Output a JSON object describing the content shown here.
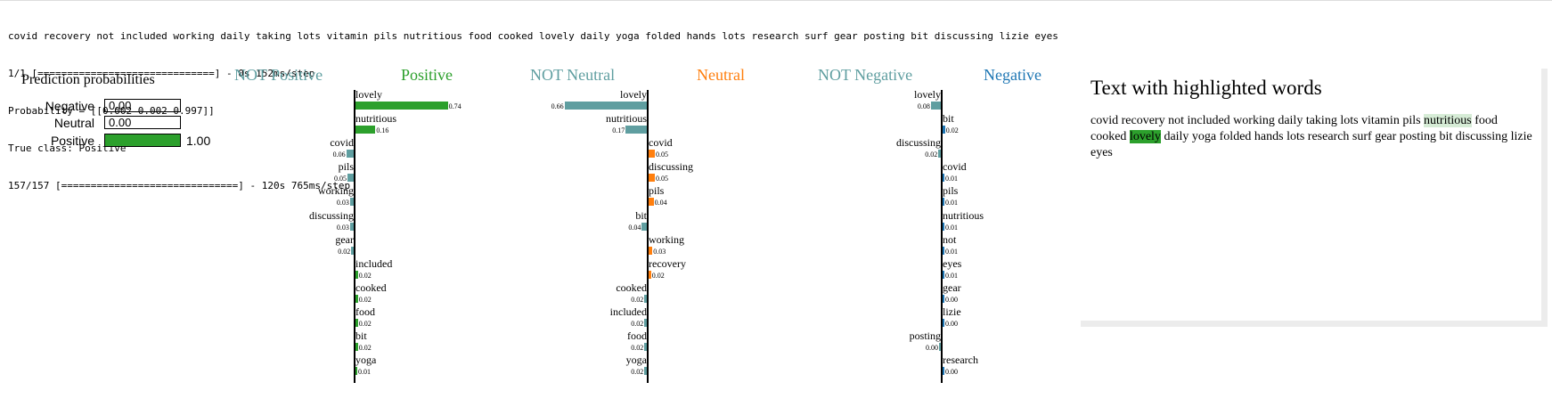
{
  "console_lines": [
    "covid recovery not included working daily taking lots vitamin pils nutritious food cooked lovely daily yoga folded hands lots research surf gear posting bit discussing lizie eyes",
    "1/1 [==============================] - 0s 152ms/step",
    "Probability = [[0.002 0.002 0.997]]",
    "True class: Positive",
    "157/157 [==============================] - 120s 765ms/step"
  ],
  "prediction_probabilities": {
    "title": "Prediction probabilities",
    "rows": [
      {
        "label": "Negative",
        "value": 0.0,
        "display": "0.00",
        "color": "#2ca02c"
      },
      {
        "label": "Neutral",
        "value": 0.0,
        "display": "0.00",
        "color": "#2ca02c"
      },
      {
        "label": "Positive",
        "value": 1.0,
        "display": "1.00",
        "color": "#2ca02c"
      }
    ]
  },
  "chart_data": [
    {
      "type": "bar",
      "orientation": "horizontal-diverging",
      "left_title": "NOT Positive",
      "right_title": "Positive",
      "left_color": "#5f9ea0",
      "right_color": "#2ca02c",
      "features": [
        {
          "name": "lovely",
          "value": 0.74,
          "side": "right",
          "display": "0.74"
        },
        {
          "name": "nutritious",
          "value": 0.16,
          "side": "right",
          "display": "0.16"
        },
        {
          "name": "covid",
          "value": 0.06,
          "side": "left",
          "display": "0.06"
        },
        {
          "name": "pils",
          "value": 0.05,
          "side": "left",
          "display": "0.05"
        },
        {
          "name": "working",
          "value": 0.03,
          "side": "left",
          "display": "0.03"
        },
        {
          "name": "discussing",
          "value": 0.03,
          "side": "left",
          "display": "0.03"
        },
        {
          "name": "gear",
          "value": 0.02,
          "side": "left",
          "display": "0.02"
        },
        {
          "name": "included",
          "value": 0.02,
          "side": "right",
          "display": "0.02"
        },
        {
          "name": "cooked",
          "value": 0.02,
          "side": "right",
          "display": "0.02"
        },
        {
          "name": "food",
          "value": 0.02,
          "side": "right",
          "display": "0.02"
        },
        {
          "name": "bit",
          "value": 0.02,
          "side": "right",
          "display": "0.02"
        },
        {
          "name": "yoga",
          "value": 0.01,
          "side": "right",
          "display": "0.01"
        }
      ]
    },
    {
      "type": "bar",
      "orientation": "horizontal-diverging",
      "left_title": "NOT Neutral",
      "right_title": "Neutral",
      "left_color": "#5f9ea0",
      "right_color": "#ff7f0e",
      "features": [
        {
          "name": "lovely",
          "value": 0.66,
          "side": "left",
          "display": "0.66"
        },
        {
          "name": "nutritious",
          "value": 0.17,
          "side": "left",
          "display": "0.17"
        },
        {
          "name": "covid",
          "value": 0.05,
          "side": "right",
          "display": "0.05"
        },
        {
          "name": "discussing",
          "value": 0.05,
          "side": "right",
          "display": "0.05"
        },
        {
          "name": "pils",
          "value": 0.04,
          "side": "right",
          "display": "0.04"
        },
        {
          "name": "bit",
          "value": 0.04,
          "side": "left",
          "display": "0.04"
        },
        {
          "name": "working",
          "value": 0.03,
          "side": "right",
          "display": "0.03"
        },
        {
          "name": "recovery",
          "value": 0.02,
          "side": "right",
          "display": "0.02"
        },
        {
          "name": "cooked",
          "value": 0.02,
          "side": "left",
          "display": "0.02"
        },
        {
          "name": "included",
          "value": 0.02,
          "side": "left",
          "display": "0.02"
        },
        {
          "name": "food",
          "value": 0.02,
          "side": "left",
          "display": "0.02"
        },
        {
          "name": "yoga",
          "value": 0.02,
          "side": "left",
          "display": "0.02"
        }
      ]
    },
    {
      "type": "bar",
      "orientation": "horizontal-diverging",
      "left_title": "NOT Negative",
      "right_title": "Negative",
      "left_color": "#5f9ea0",
      "right_color": "#1f77b4",
      "features": [
        {
          "name": "lovely",
          "value": 0.08,
          "side": "left",
          "display": "0.08"
        },
        {
          "name": "bit",
          "value": 0.02,
          "side": "right",
          "display": "0.02"
        },
        {
          "name": "discussing",
          "value": 0.02,
          "side": "left",
          "display": "0.02"
        },
        {
          "name": "covid",
          "value": 0.01,
          "side": "right",
          "display": "0.01"
        },
        {
          "name": "pils",
          "value": 0.01,
          "side": "right",
          "display": "0.01"
        },
        {
          "name": "nutritious",
          "value": 0.01,
          "side": "right",
          "display": "0.01"
        },
        {
          "name": "not",
          "value": 0.01,
          "side": "right",
          "display": "0.01"
        },
        {
          "name": "eyes",
          "value": 0.01,
          "side": "right",
          "display": "0.01"
        },
        {
          "name": "gear",
          "value": 0.0,
          "side": "right",
          "display": "0.00"
        },
        {
          "name": "lizie",
          "value": 0.0,
          "side": "right",
          "display": "0.00"
        },
        {
          "name": "posting",
          "value": 0.0,
          "side": "left",
          "display": "0.00"
        },
        {
          "name": "research",
          "value": 0.0,
          "side": "right",
          "display": "0.00"
        }
      ]
    }
  ],
  "highlighted_text": {
    "title": "Text with highlighted words",
    "tokens": [
      {
        "text": "covid recovery not included working daily taking lots vitamin pils ",
        "highlight": null
      },
      {
        "text": "nutritious",
        "highlight": "#d6ecd6"
      },
      {
        "text": " food cooked ",
        "highlight": null
      },
      {
        "text": "lovely",
        "highlight": "#2ca02c"
      },
      {
        "text": " daily yoga folded hands lots research surf gear posting bit discussing lizie eyes",
        "highlight": null
      }
    ]
  }
}
